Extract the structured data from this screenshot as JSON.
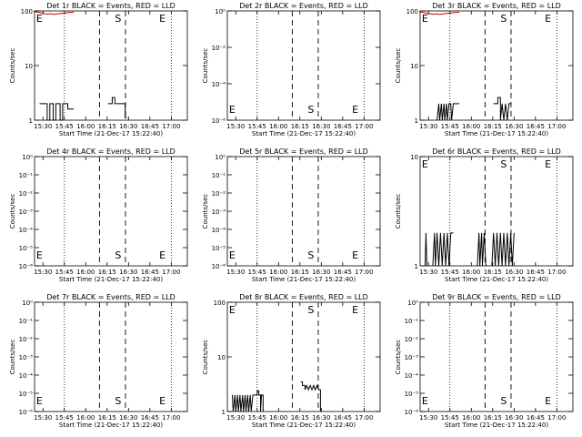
{
  "figure": {
    "background": "#ffffff",
    "colors": {
      "events": "#000000",
      "lld": "#cc0000"
    },
    "panels": [
      {
        "title": "Det 1r BLACK = Events, RED = LLD",
        "ylabel": "Counts/sec",
        "xlabel": "Start Time (21-Dec-17 15:22:40)",
        "x_ticks": [
          "15:30",
          "15:45",
          "16:00",
          "16:15",
          "16:30",
          "16:45",
          "17:00"
        ],
        "y_ticks": [
          "1",
          "10",
          "100"
        ],
        "y_range": [
          1,
          100
        ],
        "markers": [
          "E",
          "S",
          "E"
        ],
        "events_segments": [
          [
            [
              15.46,
              2
            ],
            [
              15.55,
              2
            ],
            [
              15.55,
              1
            ],
            [
              15.58,
              1
            ],
            [
              15.58,
              2
            ],
            [
              15.62,
              2
            ],
            [
              15.62,
              1
            ],
            [
              15.65,
              1
            ],
            [
              15.65,
              2
            ],
            [
              15.7,
              2
            ],
            [
              15.7,
              1
            ],
            [
              15.73,
              1
            ],
            [
              15.73,
              2
            ],
            [
              15.79,
              2
            ],
            [
              15.79,
              1.6
            ],
            [
              15.86,
              1.6
            ]
          ],
          [
            [
              16.26,
              2
            ],
            [
              16.31,
              2
            ],
            [
              16.31,
              2.6
            ],
            [
              16.34,
              2.6
            ],
            [
              16.34,
              2
            ],
            [
              16.46,
              2
            ],
            [
              16.46,
              1.1
            ],
            [
              16.48,
              1.1
            ]
          ]
        ],
        "lld_segments": [
          [
            [
              15.39,
              98
            ],
            [
              15.43,
              95
            ],
            [
              15.47,
              93
            ],
            [
              15.51,
              90
            ],
            [
              15.55,
              87
            ],
            [
              15.59,
              89
            ],
            [
              15.63,
              86
            ],
            [
              15.67,
              88
            ],
            [
              15.71,
              90
            ],
            [
              15.75,
              91
            ],
            [
              15.79,
              93
            ],
            [
              15.83,
              94
            ],
            [
              15.86,
              95
            ]
          ]
        ]
      },
      {
        "title": "Det 2r BLACK = Events, RED = LLD",
        "ylabel": "Counts/sec",
        "xlabel": "Start Time (21-Dec-17 15:22:40)",
        "x_ticks": [
          "15:30",
          "15:45",
          "16:00",
          "16:15",
          "16:30",
          "16:45",
          "17:00"
        ],
        "y_ticks": [
          "10⁻⁶",
          "10⁻⁴",
          "10⁻²",
          "10⁰"
        ],
        "y_range": [
          1e-06,
          1
        ],
        "markers": [
          "E",
          "S",
          "E"
        ],
        "events_segments": [],
        "lld_segments": []
      },
      {
        "title": "Det 3r BLACK = Events, RED = LLD",
        "ylabel": "Counts/sec",
        "xlabel": "Start Time (21-Dec-17 15:22:40)",
        "x_ticks": [
          "15:30",
          "15:45",
          "16:00",
          "16:15",
          "16:30",
          "16:45",
          "17:00"
        ],
        "y_ticks": [
          "1",
          "10",
          "100"
        ],
        "y_range": [
          1,
          100
        ],
        "markers": [
          "E",
          "S",
          "E"
        ],
        "events_segments": [
          [
            [
              15.6,
              1
            ],
            [
              15.62,
              2
            ],
            [
              15.63,
              1
            ],
            [
              15.65,
              2
            ],
            [
              15.66,
              1
            ],
            [
              15.68,
              2
            ],
            [
              15.69,
              1
            ],
            [
              15.71,
              2
            ],
            [
              15.72,
              1
            ],
            [
              15.74,
              2
            ],
            [
              15.76,
              2
            ],
            [
              15.77,
              1
            ],
            [
              15.79,
              2
            ],
            [
              15.86,
              2
            ]
          ],
          [
            [
              16.26,
              2
            ],
            [
              16.31,
              2
            ],
            [
              16.31,
              2.6
            ],
            [
              16.34,
              2.6
            ],
            [
              16.34,
              1
            ],
            [
              16.36,
              2
            ],
            [
              16.38,
              1
            ],
            [
              16.4,
              2
            ],
            [
              16.42,
              1
            ],
            [
              16.44,
              2
            ],
            [
              16.46,
              2
            ]
          ]
        ],
        "lld_segments": [
          [
            [
              15.39,
              97
            ],
            [
              15.43,
              94
            ],
            [
              15.47,
              92
            ],
            [
              15.51,
              89
            ],
            [
              15.55,
              87
            ],
            [
              15.59,
              88
            ],
            [
              15.63,
              86
            ],
            [
              15.67,
              88
            ],
            [
              15.71,
              90
            ],
            [
              15.75,
              91
            ],
            [
              15.79,
              93
            ],
            [
              15.83,
              94
            ],
            [
              15.86,
              95
            ]
          ]
        ]
      },
      {
        "title": "Det 4r BLACK = Events, RED = LLD",
        "ylabel": "Counts/sec",
        "xlabel": "Start Time (21-Dec-17 15:22:40)",
        "x_ticks": [
          "15:30",
          "15:45",
          "16:00",
          "16:15",
          "16:30",
          "16:45",
          "17:00"
        ],
        "y_ticks": [
          "10⁻⁶",
          "10⁻⁵",
          "10⁻⁴",
          "10⁻³",
          "10⁻²",
          "10⁻¹",
          "10⁰"
        ],
        "y_range": [
          1e-06,
          1
        ],
        "markers": [
          "E",
          "S",
          "E"
        ],
        "events_segments": [],
        "lld_segments": []
      },
      {
        "title": "Det 5r BLACK = Events, RED = LLD",
        "ylabel": "Counts/sec",
        "xlabel": "Start Time (21-Dec-17 15:22:40)",
        "x_ticks": [
          "15:30",
          "15:45",
          "16:00",
          "16:15",
          "16:30",
          "16:45",
          "17:00"
        ],
        "y_ticks": [
          "10⁻⁶",
          "10⁻⁵",
          "10⁻⁴",
          "10⁻³",
          "10⁻²",
          "10⁻¹",
          "10⁰"
        ],
        "y_range": [
          1e-06,
          1
        ],
        "markers": [
          "E",
          "S",
          "E"
        ],
        "events_segments": [],
        "lld_segments": []
      },
      {
        "title": "Det 6r BLACK = Events, RED = LLD",
        "ylabel": "Counts/sec",
        "xlabel": "Start Time (21-Dec-17 15:22:40)",
        "x_ticks": [
          "15:30",
          "15:45",
          "16:00",
          "16:15",
          "16:30",
          "16:45",
          "17:00"
        ],
        "y_ticks": [
          "1",
          "10"
        ],
        "y_range": [
          1,
          10
        ],
        "markers": [
          "E",
          "S",
          "E"
        ],
        "events_segments": [
          [
            [
              15.46,
              1
            ],
            [
              15.47,
              2
            ],
            [
              15.48,
              1
            ]
          ],
          [
            [
              15.55,
              1
            ],
            [
              15.57,
              2
            ],
            [
              15.58,
              1
            ],
            [
              15.6,
              2
            ],
            [
              15.62,
              1
            ],
            [
              15.64,
              2
            ],
            [
              15.66,
              1
            ],
            [
              15.68,
              2
            ],
            [
              15.7,
              1
            ],
            [
              15.72,
              2
            ],
            [
              15.74,
              1
            ],
            [
              15.76,
              2
            ],
            [
              15.79,
              2
            ]
          ],
          [
            [
              16.07,
              1
            ],
            [
              16.09,
              2
            ],
            [
              16.1,
              1
            ],
            [
              16.12,
              2
            ],
            [
              16.13,
              1
            ],
            [
              16.15,
              2
            ],
            [
              16.17,
              1
            ]
          ],
          [
            [
              16.24,
              1
            ],
            [
              16.26,
              2
            ],
            [
              16.28,
              1
            ],
            [
              16.3,
              2
            ],
            [
              16.32,
              1
            ],
            [
              16.34,
              2
            ],
            [
              16.36,
              1
            ],
            [
              16.38,
              2
            ],
            [
              16.4,
              1
            ],
            [
              16.42,
              2
            ],
            [
              16.44,
              1
            ],
            [
              16.46,
              2
            ],
            [
              16.48,
              1
            ],
            [
              16.5,
              2
            ]
          ]
        ],
        "lld_segments": []
      },
      {
        "title": "Det 7r BLACK = Events, RED = LLD",
        "ylabel": "Counts/sec",
        "xlabel": "Start Time (21-Dec-17 15:22:40)",
        "x_ticks": [
          "15:30",
          "15:45",
          "16:00",
          "16:15",
          "16:30",
          "16:45",
          "17:00"
        ],
        "y_ticks": [
          "10⁻⁶",
          "10⁻⁵",
          "10⁻⁴",
          "10⁻³",
          "10⁻²",
          "10⁻¹",
          "10⁰"
        ],
        "y_range": [
          1e-06,
          1
        ],
        "markers": [
          "E",
          "S",
          "E"
        ],
        "events_segments": [],
        "lld_segments": []
      },
      {
        "title": "Det 8r BLACK = Events, RED = LLD",
        "ylabel": "Counts/sec",
        "xlabel": "Start Time (21-Dec-17 15:22:40)",
        "x_ticks": [
          "15:30",
          "15:45",
          "16:00",
          "16:15",
          "16:30",
          "16:45",
          "17:00"
        ],
        "y_ticks": [
          "1",
          "10",
          "100"
        ],
        "y_range": [
          1,
          100
        ],
        "markers": [
          "E",
          "S",
          "E"
        ],
        "events_segments": [
          [
            [
              15.46,
              2
            ],
            [
              15.47,
              1
            ],
            [
              15.49,
              2
            ],
            [
              15.5,
              1
            ],
            [
              15.52,
              2
            ],
            [
              15.53,
              1
            ],
            [
              15.55,
              2
            ],
            [
              15.56,
              1
            ],
            [
              15.58,
              2
            ],
            [
              15.59,
              1
            ],
            [
              15.61,
              2
            ],
            [
              15.62,
              1
            ],
            [
              15.64,
              2
            ],
            [
              15.65,
              1
            ],
            [
              15.67,
              2
            ],
            [
              15.68,
              1
            ],
            [
              15.7,
              2
            ],
            [
              15.75,
              2
            ],
            [
              15.75,
              2.4
            ],
            [
              15.77,
              2.4
            ],
            [
              15.77,
              2
            ],
            [
              15.79,
              2
            ],
            [
              15.79,
              1
            ],
            [
              15.8,
              2
            ],
            [
              15.82,
              2
            ],
            [
              15.82,
              1
            ]
          ],
          [
            [
              16.26,
              3.5
            ],
            [
              16.28,
              3.5
            ],
            [
              16.28,
              3
            ],
            [
              16.31,
              3
            ],
            [
              16.31,
              2.5
            ],
            [
              16.33,
              3
            ],
            [
              16.35,
              2.5
            ],
            [
              16.37,
              3
            ],
            [
              16.39,
              2.5
            ],
            [
              16.41,
              3
            ],
            [
              16.43,
              2.5
            ],
            [
              16.45,
              3
            ],
            [
              16.47,
              2.5
            ],
            [
              16.49,
              2.5
            ],
            [
              16.49,
              1
            ]
          ]
        ],
        "lld_segments": []
      },
      {
        "title": "Det 9r BLACK = Events, RED = LLD",
        "ylabel": "Counts/sec",
        "xlabel": "Start Time (21-Dec-17 15:22:40)",
        "x_ticks": [
          "15:30",
          "15:45",
          "16:00",
          "16:15",
          "16:30",
          "16:45",
          "17:00"
        ],
        "y_ticks": [
          "10⁻⁶",
          "10⁻⁵",
          "10⁻⁴",
          "10⁻³",
          "10⁻²",
          "10⁻¹",
          "10⁰"
        ],
        "y_range": [
          1e-06,
          1
        ],
        "markers": [
          "E",
          "S",
          "E"
        ],
        "events_segments": [],
        "lld_segments": []
      }
    ]
  },
  "chart_data": [
    {
      "type": "line",
      "title": "Det 1r BLACK = Events, RED = LLD",
      "xlabel": "Start Time (21-Dec-17 15:22:40)",
      "ylabel": "Counts/sec",
      "x_ticks": [
        "15:30",
        "15:45",
        "16:00",
        "16:15",
        "16:30",
        "16:45",
        "17:00"
      ],
      "ylim": [
        1,
        100
      ],
      "y_scale": "log",
      "grid": false,
      "vertical_lines": {
        "dotted": [
          "15:45",
          "16:45"
        ],
        "dashed": [
          "16:08",
          "16:23"
        ]
      },
      "annotations": [
        "E",
        "S",
        "E"
      ],
      "series": [
        {
          "name": "Events",
          "color": "#000000",
          "approx_value": 2
        },
        {
          "name": "LLD",
          "color": "#cc0000",
          "approx_value": 90
        }
      ]
    },
    {
      "type": "line",
      "title": "Det 2r BLACK = Events, RED = LLD",
      "xlabel": "Start Time (21-Dec-17 15:22:40)",
      "ylabel": "Counts/sec",
      "ylim": [
        1e-06,
        1
      ],
      "y_scale": "log",
      "series": []
    },
    {
      "type": "line",
      "title": "Det 3r BLACK = Events, RED = LLD",
      "xlabel": "Start Time (21-Dec-17 15:22:40)",
      "ylabel": "Counts/sec",
      "ylim": [
        1,
        100
      ],
      "y_scale": "log",
      "series": [
        {
          "name": "Events",
          "color": "#000000",
          "approx_value": 2
        },
        {
          "name": "LLD",
          "color": "#cc0000",
          "approx_value": 90
        }
      ]
    },
    {
      "type": "line",
      "title": "Det 4r BLACK = Events, RED = LLD",
      "xlabel": "Start Time (21-Dec-17 15:22:40)",
      "ylabel": "Counts/sec",
      "ylim": [
        1e-06,
        1
      ],
      "y_scale": "log",
      "series": []
    },
    {
      "type": "line",
      "title": "Det 5r BLACK = Events, RED = LLD",
      "xlabel": "Start Time (21-Dec-17 15:22:40)",
      "ylabel": "Counts/sec",
      "ylim": [
        1e-06,
        1
      ],
      "y_scale": "log",
      "series": []
    },
    {
      "type": "line",
      "title": "Det 6r BLACK = Events, RED = LLD",
      "xlabel": "Start Time (21-Dec-17 15:22:40)",
      "ylabel": "Counts/sec",
      "ylim": [
        1,
        10
      ],
      "y_scale": "log",
      "series": [
        {
          "name": "Events",
          "color": "#000000",
          "approx_value": 2
        }
      ]
    },
    {
      "type": "line",
      "title": "Det 7r BLACK = Events, RED = LLD",
      "xlabel": "Start Time (21-Dec-17 15:22:40)",
      "ylabel": "Counts/sec",
      "ylim": [
        1e-06,
        1
      ],
      "y_scale": "log",
      "series": []
    },
    {
      "type": "line",
      "title": "Det 8r BLACK = Events, RED = LLD",
      "xlabel": "Start Time (21-Dec-17 15:22:40)",
      "ylabel": "Counts/sec",
      "ylim": [
        1,
        100
      ],
      "y_scale": "log",
      "series": [
        {
          "name": "Events",
          "color": "#000000",
          "approx_value": 2.5
        }
      ]
    },
    {
      "type": "line",
      "title": "Det 9r BLACK = Events, RED = LLD",
      "xlabel": "Start Time (21-Dec-17 15:22:40)",
      "ylabel": "Counts/sec",
      "ylim": [
        1e-06,
        1
      ],
      "y_scale": "log",
      "series": []
    }
  ]
}
